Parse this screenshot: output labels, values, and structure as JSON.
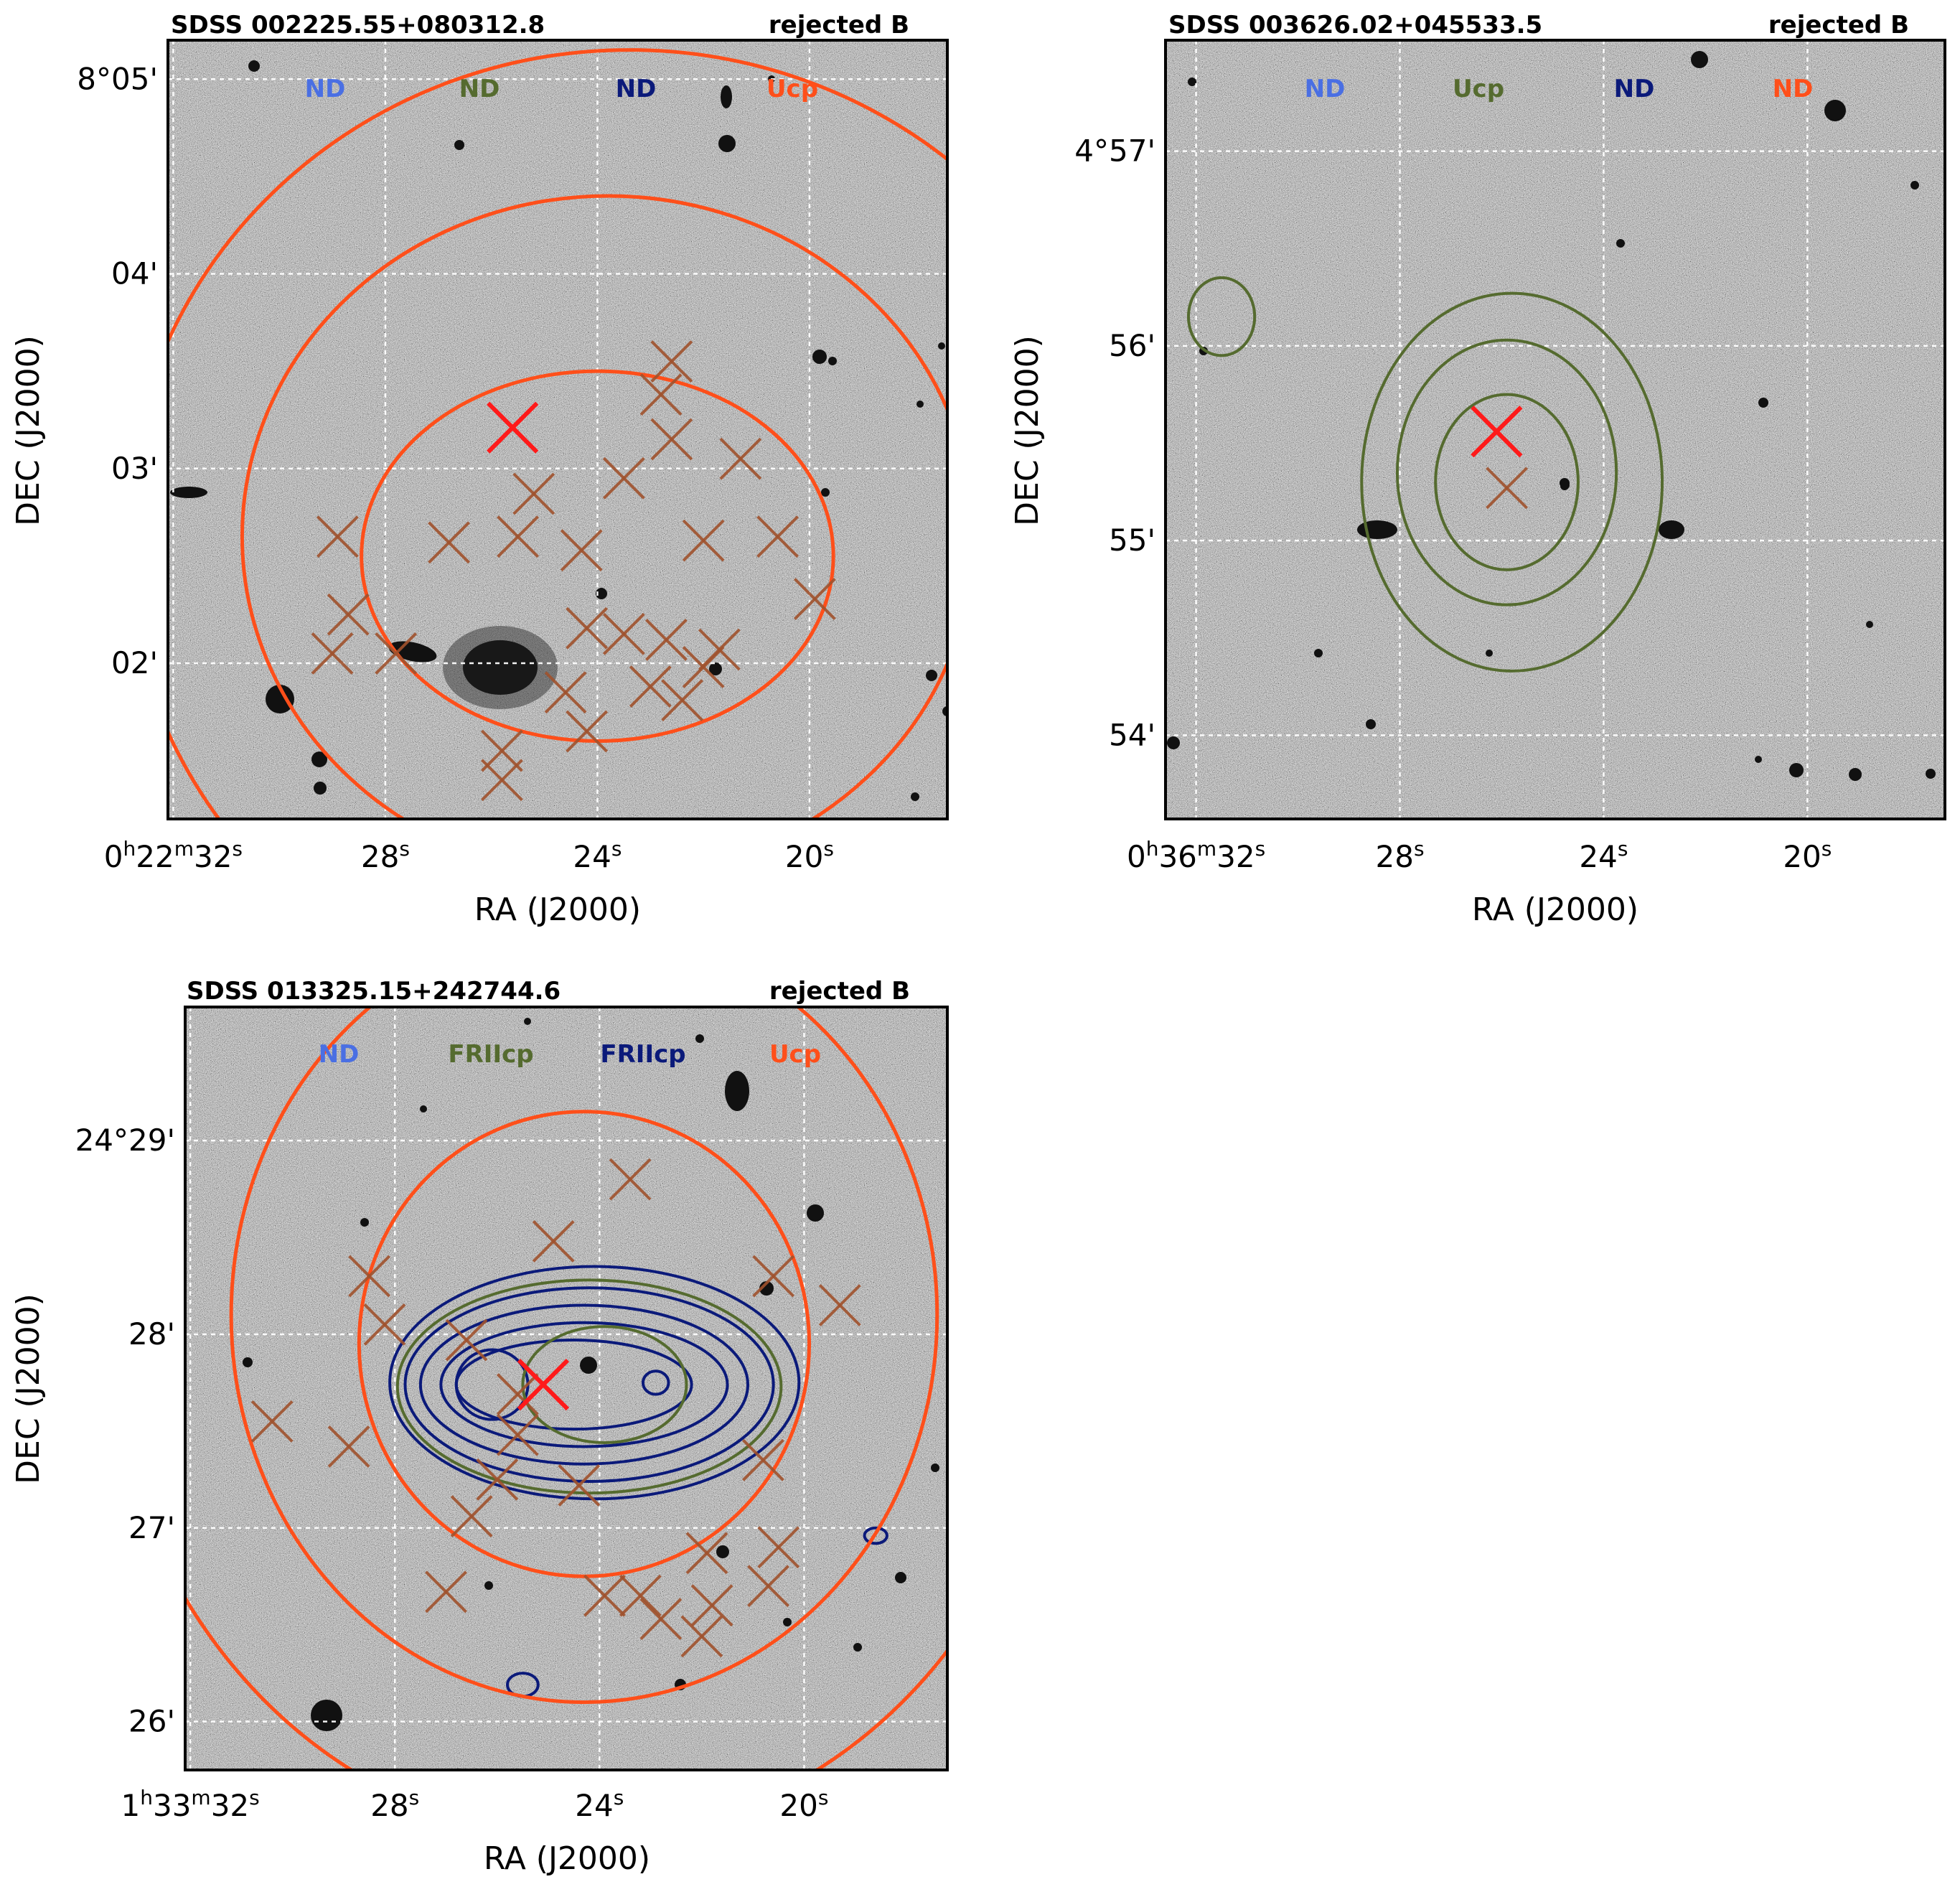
{
  "figure": {
    "colors": {
      "ch1": "#4a6fe3",
      "ch2": "#556b2f",
      "ch3": "#0b1a7a",
      "ch4": "#ff4f1a",
      "cross": "#a0522d",
      "center_cross": "#ff1a1a",
      "frame": "#000000",
      "background_noise": "#8c8c8c"
    }
  },
  "panels": [
    {
      "title": "SDSS 002225.55+080312.8",
      "status": "rejected B",
      "legend": [
        {
          "text": "ND",
          "color_key": "ch1"
        },
        {
          "text": "ND",
          "color_key": "ch2"
        },
        {
          "text": "ND",
          "color_key": "ch3"
        },
        {
          "text": "Ucp",
          "color_key": "ch4"
        }
      ],
      "x_ticks": [
        {
          "label": [
            "0",
            "h",
            "22",
            "m",
            "32",
            "s"
          ]
        },
        {
          "label": [
            "28",
            "s"
          ]
        },
        {
          "label": [
            "24",
            "s"
          ]
        },
        {
          "label": [
            "20",
            "s"
          ]
        }
      ],
      "y_ticks": [
        "8°05'",
        "04'",
        "03'",
        "02'"
      ],
      "xlabel": "RA (J2000)",
      "ylabel": "DEC (J2000)"
    },
    {
      "title": "SDSS 003626.02+045533.5",
      "status": "rejected B",
      "legend": [
        {
          "text": "ND",
          "color_key": "ch1"
        },
        {
          "text": "Ucp",
          "color_key": "ch2"
        },
        {
          "text": "ND",
          "color_key": "ch3"
        },
        {
          "text": "ND",
          "color_key": "ch4"
        }
      ],
      "x_ticks": [
        {
          "label": [
            "0",
            "h",
            "36",
            "m",
            "32",
            "s"
          ]
        },
        {
          "label": [
            "28",
            "s"
          ]
        },
        {
          "label": [
            "24",
            "s"
          ]
        },
        {
          "label": [
            "20",
            "s"
          ]
        }
      ],
      "y_ticks": [
        "4°57'",
        "56'",
        "55'",
        "54'"
      ],
      "xlabel": "RA (J2000)",
      "ylabel": "DEC (J2000)"
    },
    {
      "title": "SDSS 013325.15+242744.6",
      "status": "rejected B",
      "legend": [
        {
          "text": "ND",
          "color_key": "ch1"
        },
        {
          "text": "FRIIcp",
          "color_key": "ch2"
        },
        {
          "text": "FRIIcp",
          "color_key": "ch3"
        },
        {
          "text": "Ucp",
          "color_key": "ch4"
        }
      ],
      "x_ticks": [
        {
          "label": [
            "1",
            "h",
            "33",
            "m",
            "32",
            "s"
          ]
        },
        {
          "label": [
            "28",
            "s"
          ]
        },
        {
          "label": [
            "24",
            "s"
          ]
        },
        {
          "label": [
            "20",
            "s"
          ]
        }
      ],
      "y_ticks": [
        "24°29'",
        "28'",
        "27'",
        "26'"
      ],
      "xlabel": "RA (J2000)",
      "ylabel": "DEC (J2000)"
    }
  ],
  "chart_data": [
    {
      "type": "scatter",
      "title": "SDSS 002225.55+080312.8",
      "subtitle": "rejected B",
      "xlabel": "RA (J2000)",
      "ylabel": "DEC (J2000)",
      "x_tick_values_sec": [
        32,
        28,
        24,
        20
      ],
      "y_tick_values_arcmin": [
        5,
        4,
        3,
        2
      ],
      "xlim_sec": [
        32.1,
        17.4
      ],
      "ylim_arcmin": [
        1.2,
        5.2
      ],
      "grid": true,
      "center": {
        "ra_sec": 25.6,
        "dec_arcmin": 3.21
      },
      "crosses": [
        {
          "ra": 28.9,
          "dec": 2.65
        },
        {
          "ra": 25.2,
          "dec": 2.87
        },
        {
          "ra": 22.6,
          "dec": 3.15
        },
        {
          "ra": 22.0,
          "dec": 2.63
        },
        {
          "ra": 20.6,
          "dec": 2.65
        },
        {
          "ra": 23.5,
          "dec": 2.95
        },
        {
          "ra": 26.8,
          "dec": 2.62
        },
        {
          "ra": 24.3,
          "dec": 2.58
        },
        {
          "ra": 28.7,
          "dec": 2.25
        },
        {
          "ra": 27.8,
          "dec": 2.05
        },
        {
          "ra": 25.5,
          "dec": 2.65
        },
        {
          "ra": 24.2,
          "dec": 2.18
        },
        {
          "ra": 23.5,
          "dec": 2.15
        },
        {
          "ra": 22.7,
          "dec": 2.12
        },
        {
          "ra": 22.0,
          "dec": 1.98
        },
        {
          "ra": 21.7,
          "dec": 2.07
        },
        {
          "ra": 23.0,
          "dec": 1.88
        },
        {
          "ra": 22.4,
          "dec": 1.81
        },
        {
          "ra": 24.2,
          "dec": 1.65
        },
        {
          "ra": 24.6,
          "dec": 1.85
        },
        {
          "ra": 25.8,
          "dec": 1.55
        },
        {
          "ra": 25.8,
          "dec": 1.4
        },
        {
          "ra": 21.3,
          "dec": 3.05
        },
        {
          "ra": 19.9,
          "dec": 2.33
        },
        {
          "ra": 22.6,
          "dec": 3.55
        },
        {
          "ra": 22.8,
          "dec": 3.38
        },
        {
          "ra": 29.0,
          "dec": 2.05
        }
      ],
      "series": [
        {
          "name": "Ucp",
          "color_key": "ch4",
          "contours": [
            {
              "center": {
                "ra": 24.0,
                "dec": 2.55
              },
              "radius": {
                "ra": 4.45,
                "dec": 0.95
              }
            },
            {
              "center": {
                "ra": 23.8,
                "dec": 2.65
              },
              "radius": {
                "ra": 6.9,
                "dec": 1.75
              }
            },
            {
              "center": {
                "ra": 23.4,
                "dec": 2.65
              },
              "radius": {
                "ra": 9.5,
                "dec": 2.5
              }
            }
          ]
        }
      ]
    },
    {
      "type": "scatter",
      "title": "SDSS 003626.02+045533.5",
      "subtitle": "rejected B",
      "xlabel": "RA (J2000)",
      "ylabel": "DEC (J2000)",
      "x_tick_values_sec": [
        32,
        28,
        24,
        20
      ],
      "y_tick_values_arcmin": [
        57,
        56,
        55,
        54
      ],
      "xlim_sec": [
        32.6,
        17.3
      ],
      "ylim_arcmin": [
        53.57,
        57.57
      ],
      "grid": true,
      "center": {
        "ra_sec": 26.1,
        "dec_arcmin": 55.56
      },
      "crosses": [
        {
          "ra": 25.9,
          "dec": 55.27
        }
      ],
      "series": [
        {
          "name": "Ucp",
          "color_key": "ch2",
          "contours": [
            {
              "center": {
                "ra": 25.9,
                "dec": 55.3
              },
              "radius": {
                "ra": 1.4,
                "dec": 0.45
              }
            },
            {
              "center": {
                "ra": 25.9,
                "dec": 55.35
              },
              "radius": {
                "ra": 2.15,
                "dec": 0.68
              }
            },
            {
              "center": {
                "ra": 25.8,
                "dec": 55.3
              },
              "radius": {
                "ra": 2.95,
                "dec": 0.97
              }
            },
            {
              "center": {
                "ra": 31.5,
                "dec": 56.15
              },
              "radius": {
                "ra": 0.65,
                "dec": 0.2
              }
            }
          ]
        }
      ]
    },
    {
      "type": "scatter",
      "title": "SDSS 013325.15+242744.6",
      "subtitle": "rejected B",
      "xlabel": "RA (J2000)",
      "ylabel": "DEC (J2000)",
      "x_tick_values_sec": [
        32,
        28,
        24,
        20
      ],
      "y_tick_values_arcmin": [
        29,
        28,
        27,
        26
      ],
      "xlim_sec": [
        32.1,
        17.2
      ],
      "ylim_arcmin": [
        25.75,
        29.69
      ],
      "grid": true,
      "center": {
        "ra_sec": 25.1,
        "dec_arcmin": 27.74
      },
      "crosses": [
        {
          "ra": 23.4,
          "dec": 28.8
        },
        {
          "ra": 24.9,
          "dec": 28.48
        },
        {
          "ra": 28.5,
          "dec": 28.3
        },
        {
          "ra": 28.2,
          "dec": 28.05
        },
        {
          "ra": 26.6,
          "dec": 27.97
        },
        {
          "ra": 20.6,
          "dec": 28.3
        },
        {
          "ra": 19.3,
          "dec": 28.15
        },
        {
          "ra": 25.6,
          "dec": 27.69
        },
        {
          "ra": 30.4,
          "dec": 27.55
        },
        {
          "ra": 28.9,
          "dec": 27.42
        },
        {
          "ra": 25.6,
          "dec": 27.48
        },
        {
          "ra": 26.0,
          "dec": 27.25
        },
        {
          "ra": 24.4,
          "dec": 27.22
        },
        {
          "ra": 26.5,
          "dec": 27.06
        },
        {
          "ra": 20.8,
          "dec": 27.35
        },
        {
          "ra": 21.9,
          "dec": 26.87
        },
        {
          "ra": 20.5,
          "dec": 26.9
        },
        {
          "ra": 27.0,
          "dec": 26.67
        },
        {
          "ra": 23.9,
          "dec": 26.65
        },
        {
          "ra": 23.2,
          "dec": 26.65
        },
        {
          "ra": 22.8,
          "dec": 26.53
        },
        {
          "ra": 21.8,
          "dec": 26.6
        },
        {
          "ra": 20.7,
          "dec": 26.7
        },
        {
          "ra": 22.0,
          "dec": 26.44
        }
      ],
      "series": [
        {
          "name": "FRIIcp",
          "color_key": "ch3",
          "contours": [
            {
              "center": {
                "ra": 24.1,
                "dec": 27.75
              },
              "radius": {
                "ra": 4.0,
                "dec": 0.6
              }
            },
            {
              "center": {
                "ra": 24.2,
                "dec": 27.74
              },
              "radius": {
                "ra": 3.6,
                "dec": 0.5
              }
            },
            {
              "center": {
                "ra": 24.3,
                "dec": 27.74
              },
              "radius": {
                "ra": 3.2,
                "dec": 0.41
              }
            },
            {
              "center": {
                "ra": 24.3,
                "dec": 27.74
              },
              "radius": {
                "ra": 2.8,
                "dec": 0.32
              }
            },
            {
              "center": {
                "ra": 24.5,
                "dec": 27.74
              },
              "radius": {
                "ra": 2.3,
                "dec": 0.23
              }
            },
            {
              "center": {
                "ra": 26.1,
                "dec": 27.74
              },
              "radius": {
                "ra": 0.7,
                "dec": 0.18
              }
            },
            {
              "center": {
                "ra": 22.9,
                "dec": 27.75
              },
              "radius": {
                "ra": 0.25,
                "dec": 0.06
              }
            },
            {
              "center": {
                "ra": 25.5,
                "dec": 26.19
              },
              "radius": {
                "ra": 0.3,
                "dec": 0.06
              }
            },
            {
              "center": {
                "ra": 18.6,
                "dec": 26.96
              },
              "radius": {
                "ra": 0.22,
                "dec": 0.04
              }
            }
          ]
        },
        {
          "name": "FRIIcp",
          "color_key": "ch2",
          "contours": [
            {
              "center": {
                "ra": 24.2,
                "dec": 27.73
              },
              "radius": {
                "ra": 3.75,
                "dec": 0.55
              }
            },
            {
              "center": {
                "ra": 23.9,
                "dec": 27.74
              },
              "radius": {
                "ra": 1.6,
                "dec": 0.3
              }
            }
          ]
        },
        {
          "name": "Ucp",
          "color_key": "ch4",
          "contours": [
            {
              "center": {
                "ra": 24.3,
                "dec": 27.95
              },
              "radius": {
                "ra": 4.4,
                "dec": 1.2
              }
            },
            {
              "center": {
                "ra": 24.3,
                "dec": 28.1
              },
              "radius": {
                "ra": 6.9,
                "dec": 2.0
              }
            },
            {
              "center": {
                "ra": 24.3,
                "dec": 28.2
              },
              "radius": {
                "ra": 9.4,
                "dec": 2.8
              }
            }
          ]
        }
      ]
    }
  ]
}
